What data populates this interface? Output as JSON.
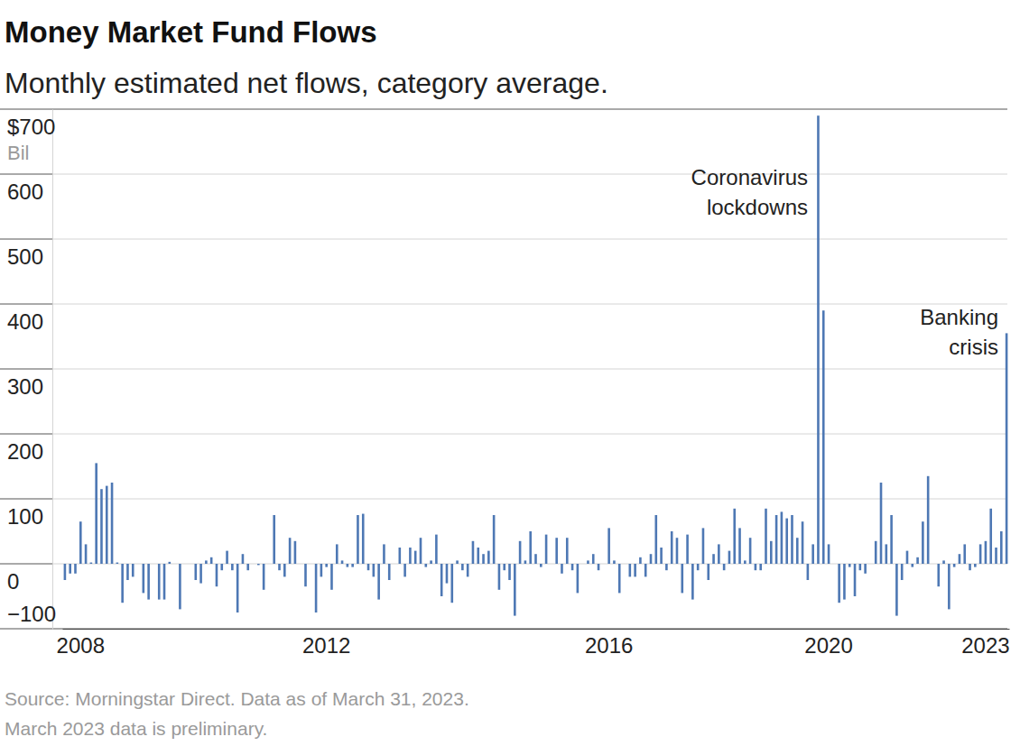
{
  "chart_data": {
    "type": "bar",
    "title": "Money Market Fund Flows",
    "subtitle": "Monthly estimated net flows, category average.",
    "ylabel": "Bil",
    "source": "Source: Morningstar Direct. Data as of March 31, 2023.",
    "note": "March 2023 data is preliminary.",
    "annotations": [
      [
        "Coronavirus",
        "lockdowns"
      ],
      [
        "Banking",
        "crisis"
      ]
    ],
    "color": "#4e78b4",
    "grid": true,
    "ylim": [
      -100,
      700
    ],
    "yticks": [
      {
        "value": -100,
        "label": "−100"
      },
      0,
      100,
      200,
      300,
      400,
      500,
      600,
      {
        "value": 700,
        "label": "$700"
      }
    ],
    "categories": [
      null,
      null,
      null,
      "2008",
      null,
      null,
      null,
      null,
      null,
      null,
      null,
      null,
      null,
      null,
      null,
      null,
      null,
      null,
      null,
      null,
      null,
      null,
      null,
      null,
      null,
      null,
      null,
      null,
      null,
      null,
      null,
      null,
      null,
      null,
      null,
      null,
      null,
      null,
      null,
      null,
      null,
      null,
      null,
      null,
      null,
      null,
      null,
      null,
      null,
      null,
      "2012",
      null,
      null,
      null,
      null,
      null,
      null,
      null,
      null,
      null,
      null,
      null,
      null,
      null,
      null,
      null,
      null,
      null,
      null,
      null,
      null,
      null,
      null,
      null,
      null,
      null,
      null,
      null,
      null,
      null,
      null,
      null,
      null,
      null,
      null,
      null,
      null,
      null,
      null,
      null,
      null,
      null,
      null,
      null,
      null,
      null,
      null,
      null,
      null,
      null,
      null,
      null,
      null,
      null,
      "2016",
      null,
      null,
      null,
      null,
      null,
      null,
      null,
      null,
      null,
      null,
      null,
      null,
      null,
      null,
      null,
      null,
      null,
      null,
      null,
      null,
      null,
      null,
      null,
      null,
      null,
      null,
      null,
      null,
      null,
      null,
      null,
      null,
      null,
      null,
      null,
      null,
      null,
      null,
      null,
      null,
      null,
      "2020",
      null,
      null,
      null,
      null,
      null,
      null,
      null,
      null,
      null,
      null,
      null,
      null,
      null,
      null,
      null,
      null,
      null,
      null,
      null,
      null,
      null,
      null,
      null,
      null,
      null,
      null,
      null,
      null,
      null,
      "2023",
      null,
      null,
      null,
      null
    ],
    "values": [
      -25,
      -15,
      -15,
      65,
      30,
      2,
      155,
      115,
      120,
      125,
      2,
      -60,
      -25,
      -20,
      0,
      -45,
      -55,
      0,
      -55,
      -55,
      3,
      0,
      -70,
      0,
      0,
      -25,
      -30,
      5,
      10,
      -35,
      -10,
      20,
      -10,
      -75,
      15,
      -10,
      0,
      -2,
      -40,
      0,
      75,
      -10,
      -20,
      40,
      35,
      0,
      -35,
      0,
      -75,
      -20,
      -5,
      -40,
      30,
      5,
      -5,
      -5,
      75,
      77,
      -10,
      -20,
      -55,
      30,
      -25,
      0,
      25,
      -20,
      25,
      20,
      40,
      -5,
      5,
      45,
      -50,
      -30,
      -60,
      5,
      -10,
      -20,
      35,
      25,
      15,
      20,
      75,
      -40,
      -10,
      -25,
      -80,
      35,
      5,
      50,
      15,
      -5,
      45,
      0,
      40,
      -15,
      40,
      -10,
      -45,
      0,
      5,
      15,
      -10,
      0,
      55,
      5,
      -45,
      0,
      -20,
      -20,
      10,
      -20,
      15,
      75,
      25,
      -10,
      50,
      40,
      -45,
      45,
      -55,
      -10,
      55,
      -25,
      15,
      30,
      -10,
      20,
      85,
      55,
      5,
      40,
      -10,
      -10,
      85,
      35,
      75,
      80,
      70,
      75,
      40,
      65,
      -25,
      30,
      690,
      390,
      30,
      0,
      -60,
      -55,
      -5,
      -50,
      -10,
      -15,
      0,
      35,
      125,
      30,
      75,
      -80,
      -25,
      20,
      -5,
      10,
      65,
      135,
      0,
      -35,
      5,
      -70,
      -5,
      15,
      30,
      -10,
      -5,
      30,
      35,
      85,
      25,
      50,
      355
    ]
  }
}
